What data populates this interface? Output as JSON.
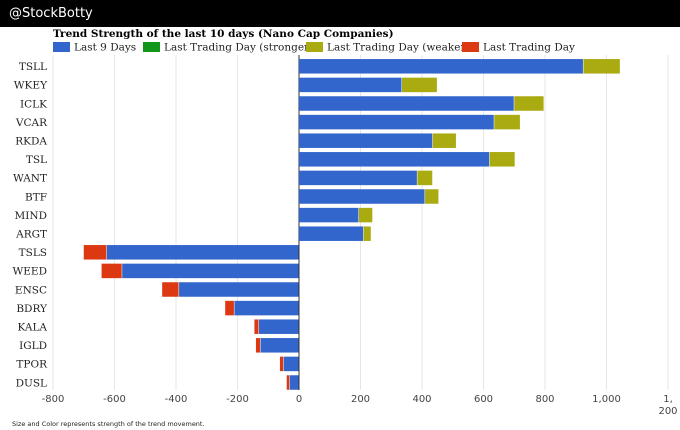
{
  "header": {
    "brand": "@StockBotty"
  },
  "footer": {
    "note": "Size and Color represents strength of the trend movement."
  },
  "colors": {
    "last9": "#3366cc",
    "stronger": "#109618",
    "weaker": "#aaaa11",
    "last_day": "#dc3912",
    "grid": "#e6e6e6",
    "axis": "#333333"
  },
  "chart_data": {
    "type": "bar",
    "orientation": "horizontal",
    "stacked": true,
    "title": "Trend Strength of the last 10 days (Nano Cap Companies)",
    "legend_position": "top",
    "categories": [
      "TSLL",
      "WKEY",
      "ICLK",
      "VCAR",
      "RKDA",
      "TSL",
      "WANT",
      "BTF",
      "MIND",
      "ARGT",
      "TSLS",
      "WEED",
      "ENSC",
      "BDRY",
      "KALA",
      "IGLD",
      "TPOR",
      "DUSL"
    ],
    "series": [
      {
        "name": "Last 9 Days",
        "color": "#3366cc",
        "values": [
          925,
          335,
          700,
          635,
          435,
          620,
          385,
          410,
          195,
          210,
          -625,
          -575,
          -390,
          -210,
          -130,
          -125,
          -50,
          -30
        ]
      },
      {
        "name": "Last Trading Day (stronger)",
        "color": "#109618",
        "values": [
          0,
          0,
          0,
          0,
          0,
          0,
          0,
          0,
          0,
          0,
          0,
          0,
          0,
          0,
          0,
          0,
          0,
          0
        ]
      },
      {
        "name": "Last Trading Day (weaker)",
        "color": "#aaaa11",
        "values": [
          120,
          115,
          97,
          85,
          77,
          83,
          50,
          45,
          45,
          25,
          0,
          0,
          0,
          0,
          0,
          0,
          0,
          0
        ]
      },
      {
        "name": "Last Trading Day",
        "color": "#dc3912",
        "values": [
          0,
          0,
          0,
          0,
          0,
          0,
          0,
          0,
          0,
          0,
          -75,
          -67,
          -55,
          -30,
          -15,
          -15,
          -12,
          -10
        ]
      }
    ],
    "xlim": [
      -800,
      1200
    ],
    "x_ticks": [
      -800,
      -600,
      -400,
      -200,
      0,
      200,
      400,
      600,
      800,
      1000,
      1200
    ],
    "x_tick_labels": [
      "-800",
      "-600",
      "-400",
      "-200",
      "0",
      "200",
      "400",
      "600",
      "800",
      "1,000",
      "1,\n200"
    ],
    "grid": true
  }
}
